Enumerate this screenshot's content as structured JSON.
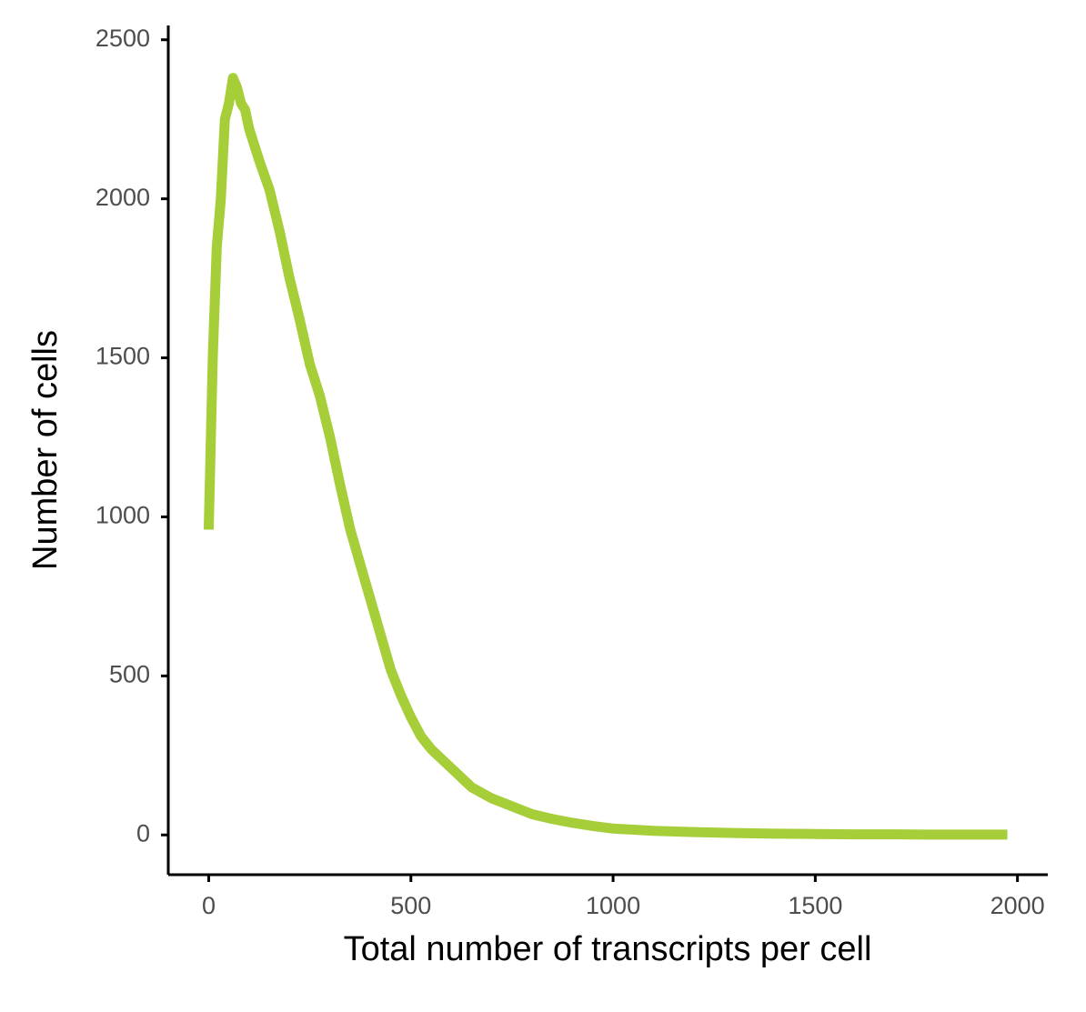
{
  "chart_data": {
    "type": "line",
    "x_label": "Total number of transcripts per cell",
    "y_label": "Number of cells",
    "x": [
      0,
      10,
      20,
      30,
      40,
      50,
      60,
      70,
      80,
      90,
      100,
      125,
      150,
      175,
      200,
      225,
      250,
      275,
      300,
      325,
      350,
      375,
      400,
      425,
      450,
      475,
      500,
      525,
      550,
      600,
      650,
      700,
      750,
      800,
      850,
      900,
      950,
      1000,
      1100,
      1200,
      1300,
      1400,
      1500,
      1600,
      1700,
      1800,
      1900,
      1975
    ],
    "series": [
      {
        "color": "#a6ce39",
        "values": [
          960,
          1500,
          1850,
          2000,
          2250,
          2300,
          2380,
          2350,
          2300,
          2280,
          2220,
          2120,
          2030,
          1900,
          1750,
          1620,
          1480,
          1380,
          1250,
          1100,
          960,
          850,
          740,
          630,
          520,
          440,
          370,
          310,
          270,
          210,
          150,
          115,
          90,
          65,
          50,
          38,
          28,
          20,
          13,
          9,
          6,
          4,
          3,
          2,
          2,
          1,
          1,
          1
        ]
      }
    ],
    "xlim": [
      -100,
      2075
    ],
    "ylim": [
      -125,
      2545
    ],
    "xticks": [
      0,
      500,
      1000,
      1500,
      2000
    ],
    "yticks": [
      0,
      500,
      1000,
      1500,
      2000,
      2500
    ]
  }
}
